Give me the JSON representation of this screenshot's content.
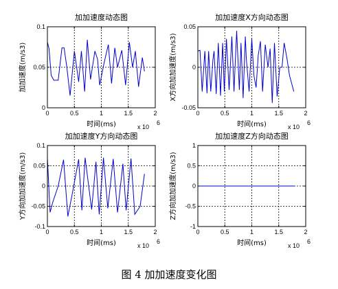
{
  "caption": "图 4 加加速度变化图",
  "colors": {
    "line": "#0000cc",
    "axis": "#000000",
    "grid": "#000000",
    "background": "#ffffff"
  },
  "chart_data": [
    {
      "type": "line",
      "title": "加加速度动态图",
      "xlabel": "时间(ms)",
      "ylabel": "加加速度(m/s3)",
      "x_multiplier": "x 10",
      "x_exponent": "6",
      "xlim": [
        0,
        2
      ],
      "ylim": [
        0,
        0.1
      ],
      "xticks": [
        "0",
        "0.5",
        "1",
        "1.5",
        "2"
      ],
      "yticks": [
        "0",
        "0.05",
        "0.1"
      ],
      "grid": true,
      "series": [
        {
          "x": [
            0,
            0.03,
            0.07,
            0.12,
            0.2,
            0.27,
            0.31,
            0.36,
            0.42,
            0.5,
            0.58,
            0.63,
            0.69,
            0.74,
            0.8,
            0.88,
            0.93,
            0.97,
            1.05,
            1.13,
            1.19,
            1.25,
            1.3,
            1.38,
            1.45,
            1.52,
            1.58,
            1.63,
            1.69,
            1.76,
            1.8
          ],
          "y": [
            0.081,
            0.073,
            0.04,
            0.034,
            0.034,
            0.074,
            0.074,
            0.05,
            0.015,
            0.07,
            0.032,
            0.07,
            0.02,
            0.084,
            0.035,
            0.07,
            0.06,
            0.028,
            0.055,
            0.078,
            0.03,
            0.074,
            0.05,
            0.071,
            0.028,
            0.081,
            0.05,
            0.07,
            0.026,
            0.062,
            0.045
          ]
        }
      ]
    },
    {
      "type": "line",
      "title": "加加速度X方向动态图",
      "xlabel": "时间(ms)",
      "ylabel": "X方向加加速度(m/s3)",
      "x_multiplier": "x 10",
      "x_exponent": "6",
      "xlim": [
        0,
        2
      ],
      "ylim": [
        -0.05,
        0.05
      ],
      "xticks": [
        "0",
        "0.5",
        "1",
        "1.5",
        "2"
      ],
      "yticks": [
        "-0.05",
        "0",
        "0.05"
      ],
      "grid": true,
      "series": [
        {
          "x": [
            0,
            0.04,
            0.08,
            0.13,
            0.17,
            0.2,
            0.24,
            0.28,
            0.3,
            0.34,
            0.38,
            0.42,
            0.46,
            0.49,
            0.53,
            0.58,
            0.63,
            0.67,
            0.72,
            0.77,
            0.8,
            0.84,
            0.88,
            0.9,
            0.95,
            1.0,
            1.04,
            1.08,
            1.12,
            1.16,
            1.2,
            1.25,
            1.3,
            1.34,
            1.38,
            1.42,
            1.47,
            1.52,
            1.56,
            1.6,
            1.65,
            1.7,
            1.74,
            1.78
          ],
          "y": [
            0.02,
            0.021,
            -0.03,
            0.02,
            -0.032,
            0.02,
            -0.03,
            0.01,
            0.02,
            -0.033,
            0.03,
            -0.035,
            0.03,
            -0.03,
            0.035,
            -0.028,
            0.038,
            -0.03,
            0.045,
            -0.028,
            0.03,
            -0.038,
            0.038,
            0.01,
            -0.03,
            0.035,
            -0.01,
            -0.025,
            0.015,
            0.032,
            -0.03,
            0.028,
            0.0,
            0.023,
            -0.044,
            0.03,
            -0.036,
            0.0,
            0.0,
            0.03,
            0.012,
            -0.01,
            -0.02,
            -0.03
          ]
        }
      ]
    },
    {
      "type": "line",
      "title": "加加速度Y方向动态图",
      "xlabel": "时间(ms)",
      "ylabel": "Y方向加加速度(m/s3)",
      "x_multiplier": "x 10",
      "x_exponent": "6",
      "xlim": [
        0,
        2
      ],
      "ylim": [
        -0.1,
        0.1
      ],
      "xticks": [
        "0",
        "0.5",
        "1",
        "1.5",
        "2"
      ],
      "yticks": [
        "-0.1",
        "-0.05",
        "0",
        "0.05",
        "0.1"
      ],
      "grid": true,
      "series": [
        {
          "x": [
            0,
            0.05,
            0.1,
            0.2,
            0.3,
            0.38,
            0.46,
            0.58,
            0.64,
            0.7,
            0.82,
            0.9,
            0.96,
            1.04,
            1.12,
            1.22,
            1.3,
            1.4,
            1.46,
            1.55,
            1.62,
            1.72,
            1.8
          ],
          "y": [
            0.07,
            -0.065,
            -0.04,
            0.0,
            0.065,
            -0.075,
            -0.02,
            0.066,
            -0.06,
            0.07,
            -0.058,
            0.06,
            -0.07,
            0.07,
            -0.055,
            0.067,
            -0.065,
            0.055,
            -0.06,
            0.068,
            -0.07,
            -0.05,
            0.03
          ]
        }
      ]
    },
    {
      "type": "line",
      "title": "加加速度Z方向动态图",
      "xlabel": "时间(ms)",
      "ylabel": "Z方向加加速度(m/s3)",
      "x_multiplier": "x 10",
      "x_exponent": "6",
      "xlim": [
        0,
        2
      ],
      "ylim": [
        -1,
        1
      ],
      "xticks": [
        "0",
        "0.5",
        "1",
        "1.5",
        "2"
      ],
      "yticks": [
        "-1",
        "-0.5",
        "0",
        "0.5",
        "1"
      ],
      "grid": true,
      "series": [
        {
          "x": [
            0,
            1.8
          ],
          "y": [
            0,
            0
          ]
        }
      ]
    }
  ]
}
